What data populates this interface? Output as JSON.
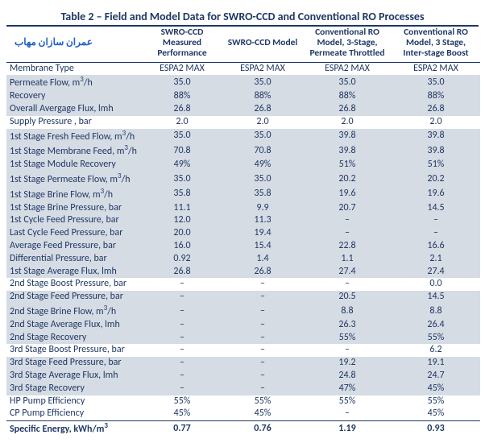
{
  "title": "Table 2 – Field and Model Data for SWRO-CCD and Conventional RO Processes",
  "watermark": "عمران سازان مهاب",
  "headers": {
    "c0": "",
    "c1": "SWRO-CCD Measured Performance",
    "c2": "SWRO-CCD Model",
    "c3": "Conventional RO Model, 3-Stage, Permeate Throttled",
    "c4": "Conventional RO Model, 3 Stage, Inter-stage Boost"
  },
  "rows": [
    {
      "shade": false,
      "label": "Membrane Type",
      "v": [
        "ESPA2 MAX",
        "ESPA2 MAX",
        "ESPA2 MAX",
        "ESPA2 MAX"
      ]
    },
    {
      "shade": true,
      "label": "Permeate Flow, m³/h",
      "v": [
        "35.0",
        "35.0",
        "35.0",
        "35.0"
      ]
    },
    {
      "shade": true,
      "label": "Recovery",
      "v": [
        "88%",
        "88%",
        "88%",
        "88%"
      ]
    },
    {
      "shade": true,
      "label": "Overall Avergage Flux, lmh",
      "v": [
        "26.8",
        "26.8",
        "26.8",
        "26.8"
      ]
    },
    {
      "shade": false,
      "label": "Supply Pressure , bar",
      "v": [
        "2.0",
        "2.0",
        "2.0",
        "2.0"
      ]
    },
    {
      "shade": true,
      "label": "1st Stage Fresh Feed Flow, m³/h",
      "v": [
        "35.0",
        "35.0",
        "39.8",
        "39.8"
      ]
    },
    {
      "shade": true,
      "label": "1st Stage Membrane Feed, m³/h",
      "v": [
        "70.8",
        "70.8",
        "39.8",
        "39.8"
      ]
    },
    {
      "shade": true,
      "label": "1st Stage Module Recovery",
      "v": [
        "49%",
        "49%",
        "51%",
        "51%"
      ]
    },
    {
      "shade": true,
      "label": "1st Stage Permeate Flow, m³/h",
      "v": [
        "35.0",
        "35.0",
        "20.2",
        "20.2"
      ]
    },
    {
      "shade": true,
      "label": "1st Stage Brine Flow, m³/h",
      "v": [
        "35.8",
        "35.8",
        "19.6",
        "19.6"
      ]
    },
    {
      "shade": true,
      "label": "1st Stage Brine Pressure, bar",
      "v": [
        "11.1",
        "9.9",
        "20.7",
        "14.5"
      ]
    },
    {
      "shade": true,
      "label": "1st Cycle Feed Pressure, bar",
      "v": [
        "12.0",
        "11.3",
        "–",
        "–"
      ]
    },
    {
      "shade": true,
      "label": "Last Cycle Feed Pressure, bar",
      "v": [
        "20.0",
        "19.4",
        "–",
        "–"
      ]
    },
    {
      "shade": true,
      "label": "Average Feed Pressure, bar",
      "v": [
        "16.0",
        "15.4",
        "22.8",
        "16.6"
      ]
    },
    {
      "shade": true,
      "label": "Differential Pressure, bar",
      "v": [
        "0.92",
        "1.4",
        "1.1",
        "2.1"
      ]
    },
    {
      "shade": true,
      "label": "1st Stage Average Flux, lmh",
      "v": [
        "26.8",
        "26.8",
        "27.4",
        "27.4"
      ]
    },
    {
      "shade": false,
      "label": "2nd Stage Boost Pressure, bar",
      "v": [
        "–",
        "–",
        "–",
        "0.0"
      ]
    },
    {
      "shade": true,
      "label": "2nd Stage Feed Pressure, bar",
      "v": [
        "–",
        "–",
        "20.5",
        "14.5"
      ]
    },
    {
      "shade": true,
      "label": "2nd Stage Brine Flow, m³/h",
      "v": [
        "–",
        "–",
        "8.8",
        "8.8"
      ]
    },
    {
      "shade": true,
      "label": "2nd Stage Average Flux, lmh",
      "v": [
        "–",
        "–",
        "26.3",
        "26.4"
      ]
    },
    {
      "shade": true,
      "label": "2nd Stage Recovery",
      "v": [
        "–",
        "–",
        "55%",
        "55%"
      ]
    },
    {
      "shade": false,
      "label": "3rd Stage Boost Pressure, bar",
      "v": [
        "–",
        "–",
        "–",
        "6.2"
      ]
    },
    {
      "shade": true,
      "label": "3rd Stage Feed Pressure, bar",
      "v": [
        "–",
        "–",
        "19.2",
        "19.1"
      ]
    },
    {
      "shade": true,
      "label": "3rd Stage Average Flux, lmh",
      "v": [
        "–",
        "–",
        "24.8",
        "24.7"
      ]
    },
    {
      "shade": true,
      "label": "3rd Stage Recovery",
      "v": [
        "–",
        "–",
        "47%",
        "45%"
      ]
    },
    {
      "shade": false,
      "label": "HP Pump Efficiency",
      "v": [
        "55%",
        "55%",
        "55%",
        "55%"
      ]
    },
    {
      "shade": false,
      "label": "CP Pump Efficiency",
      "v": [
        "45%",
        "45%",
        "–",
        "45%"
      ],
      "thickline": true
    },
    {
      "shade": false,
      "label": "Specific Energy, kWh/m³",
      "v": [
        "0.77",
        "0.76",
        "1.19",
        "0.93"
      ],
      "bold": true
    }
  ]
}
